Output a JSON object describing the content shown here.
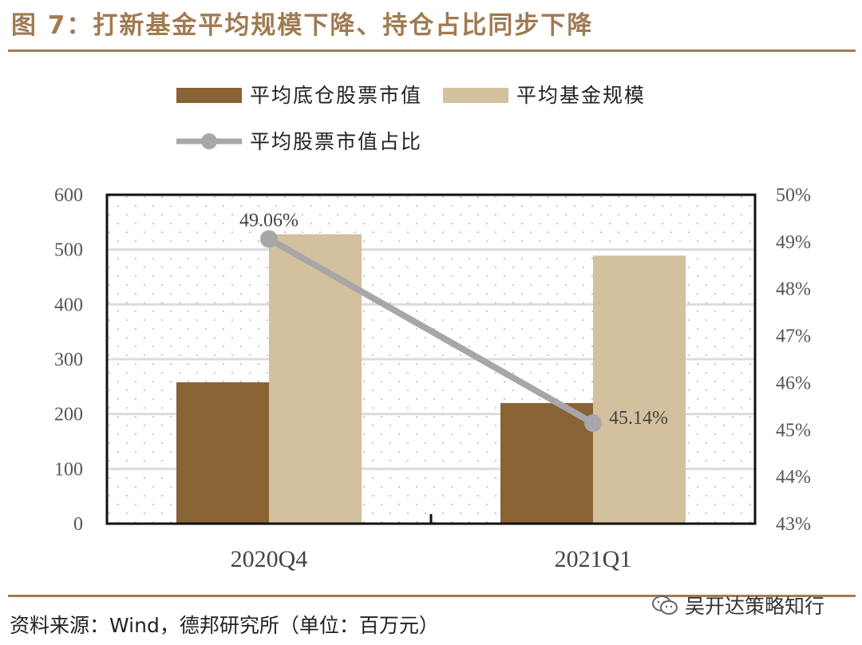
{
  "title": "图 7：打新基金平均规模下降、持仓占比同步下降",
  "source": "资料来源：Wind，德邦研究所（单位：百万元）",
  "watermark": "吴开达策略知行",
  "colors": {
    "accent": "#a27b55",
    "bar_dark": "#8a6335",
    "bar_light": "#d3c09e",
    "line": "#a8a6a8"
  },
  "chart_data": {
    "type": "bar",
    "categories": [
      "2020Q4",
      "2021Q1"
    ],
    "series": [
      {
        "name": "平均底仓股票市值",
        "type": "bar",
        "axis": "left",
        "values": [
          258,
          220
        ]
      },
      {
        "name": "平均基金规模",
        "type": "bar",
        "axis": "left",
        "values": [
          528,
          489
        ]
      },
      {
        "name": "平均股票市值占比",
        "type": "line",
        "axis": "right",
        "values": [
          49.06,
          45.14
        ],
        "labels": [
          "49.06%",
          "45.14%"
        ]
      }
    ],
    "y_left": {
      "ylim": [
        0,
        600
      ],
      "ticks": [
        "0",
        "100",
        "200",
        "300",
        "400",
        "500",
        "600"
      ]
    },
    "y_right": {
      "ylim": [
        43,
        50
      ],
      "ticks": [
        "43%",
        "44%",
        "45%",
        "46%",
        "47%",
        "48%",
        "49%",
        "50%"
      ]
    },
    "legend_position": "top",
    "grid": true
  }
}
